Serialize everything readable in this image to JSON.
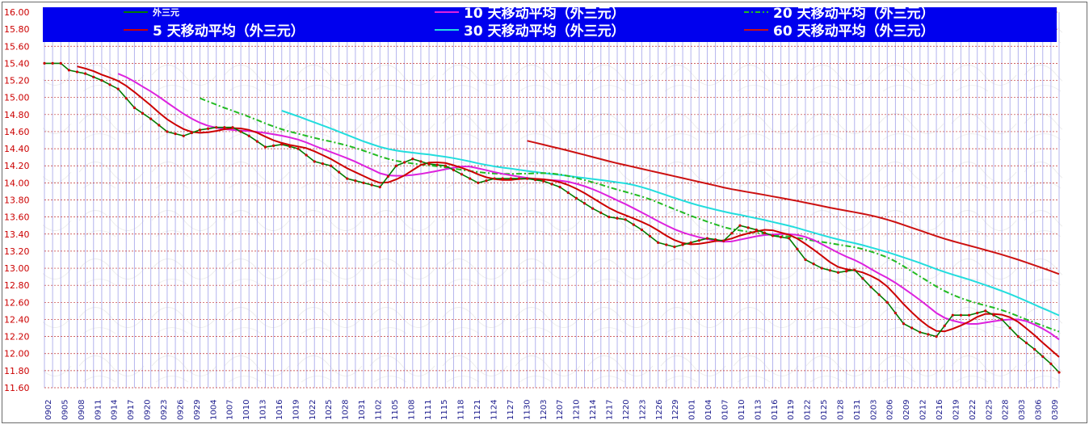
{
  "chart_data": {
    "type": "line",
    "title": "",
    "xlabel": "",
    "ylabel": "",
    "ylim": [
      11.6,
      16.0
    ],
    "y_ticks": [
      "16.00",
      "15.80",
      "15.60",
      "15.40",
      "15.20",
      "15.00",
      "14.80",
      "14.60",
      "14.40",
      "14.20",
      "14.00",
      "13.80",
      "13.60",
      "13.40",
      "13.20",
      "13.00",
      "12.80",
      "12.60",
      "12.40",
      "12.20",
      "12.00",
      "11.80",
      "11.60"
    ],
    "x_ticks": [
      "0902",
      "0905",
      "0908",
      "0911",
      "0914",
      "0917",
      "0920",
      "0923",
      "0926",
      "0929",
      "1004",
      "1007",
      "1010",
      "1013",
      "1016",
      "1019",
      "1022",
      "1025",
      "1028",
      "1031",
      "1102",
      "1105",
      "1108",
      "1111",
      "1115",
      "1118",
      "1121",
      "1124",
      "1127",
      "1130",
      "1203",
      "1207",
      "1210",
      "1214",
      "1217",
      "1220",
      "1223",
      "1226",
      "1229",
      "0101",
      "0104",
      "0107",
      "0110",
      "0113",
      "0116",
      "0119",
      "0122",
      "0125",
      "0128",
      "0131",
      "0203",
      "0206",
      "0209",
      "0212",
      "0216",
      "0219",
      "0222",
      "0225",
      "0228",
      "0303",
      "0306",
      "0309"
    ],
    "grid": true,
    "legend_position": "top",
    "legend_background": "#0000ee",
    "series": [
      {
        "name": "外三元",
        "color": "#007a00",
        "key": "price",
        "anchors": [
          [
            0,
            15.4
          ],
          [
            2,
            15.4
          ],
          [
            3,
            15.32
          ],
          [
            5,
            15.28
          ],
          [
            7,
            15.2
          ],
          [
            9,
            15.1
          ],
          [
            11,
            14.88
          ],
          [
            13,
            14.75
          ],
          [
            15,
            14.6
          ],
          [
            17,
            14.55
          ],
          [
            19,
            14.62
          ],
          [
            21,
            14.65
          ],
          [
            23,
            14.65
          ],
          [
            25,
            14.55
          ],
          [
            27,
            14.42
          ],
          [
            29,
            14.45
          ],
          [
            31,
            14.4
          ],
          [
            33,
            14.25
          ],
          [
            35,
            14.2
          ],
          [
            37,
            14.05
          ],
          [
            39,
            14.0
          ],
          [
            41,
            13.95
          ],
          [
            43,
            14.2
          ],
          [
            45,
            14.28
          ],
          [
            47,
            14.22
          ],
          [
            49,
            14.2
          ],
          [
            51,
            14.1
          ],
          [
            53,
            14.0
          ],
          [
            55,
            14.05
          ],
          [
            57,
            14.05
          ],
          [
            59,
            14.05
          ],
          [
            61,
            14.02
          ],
          [
            63,
            13.95
          ],
          [
            65,
            13.82
          ],
          [
            67,
            13.7
          ],
          [
            69,
            13.6
          ],
          [
            71,
            13.57
          ],
          [
            73,
            13.45
          ],
          [
            75,
            13.3
          ],
          [
            77,
            13.25
          ],
          [
            79,
            13.3
          ],
          [
            81,
            13.35
          ],
          [
            83,
            13.32
          ],
          [
            85,
            13.5
          ],
          [
            87,
            13.45
          ],
          [
            89,
            13.38
          ],
          [
            91,
            13.35
          ],
          [
            93,
            13.1
          ],
          [
            95,
            13.0
          ],
          [
            97,
            12.95
          ],
          [
            99,
            12.98
          ],
          [
            101,
            12.78
          ],
          [
            103,
            12.6
          ],
          [
            105,
            12.35
          ],
          [
            107,
            12.25
          ],
          [
            109,
            12.2
          ],
          [
            111,
            12.45
          ],
          [
            113,
            12.45
          ],
          [
            115,
            12.5
          ],
          [
            117,
            12.4
          ],
          [
            119,
            12.2
          ],
          [
            121,
            12.05
          ],
          [
            123,
            11.88
          ],
          [
            124,
            11.78
          ]
        ]
      },
      {
        "name": "5 天移动平均（外三元）",
        "color": "#cc0000",
        "key": "ma5",
        "window": 5
      },
      {
        "name": "10 天移动平均（外三元）",
        "color": "#dd22dd",
        "key": "ma10",
        "window": 10
      },
      {
        "name": "20 天移动平均（外三元）",
        "color": "#22bb22",
        "key": "ma20",
        "window": 20,
        "dashed": true
      },
      {
        "name": "30 天移动平均（外三元）",
        "color": "#22dddd",
        "key": "ma30",
        "window": 30
      },
      {
        "name": "60 天移动平均（外三元）",
        "color": "#cc1111",
        "key": "ma60",
        "window": 60
      }
    ]
  }
}
